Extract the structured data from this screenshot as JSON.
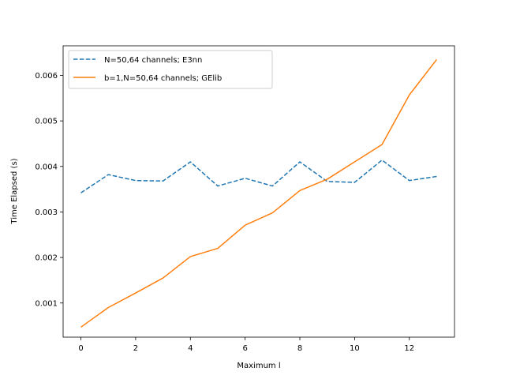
{
  "chart_data": {
    "type": "line",
    "title": "",
    "xlabel": "Maximum l",
    "ylabel": "Time Elapsed (s)",
    "xlim": [
      -0.65,
      13.65
    ],
    "ylim": [
      0.00025,
      0.00665
    ],
    "xticks": [
      0,
      2,
      4,
      6,
      8,
      10,
      12
    ],
    "xtick_labels": [
      "0",
      "2",
      "4",
      "6",
      "8",
      "10",
      "12"
    ],
    "yticks": [
      0.001,
      0.002,
      0.003,
      0.004,
      0.005,
      0.006
    ],
    "ytick_labels": [
      "0.001",
      "0.002",
      "0.003",
      "0.004",
      "0.005",
      "0.006"
    ],
    "grid": false,
    "legend_position": "upper left",
    "x": [
      0,
      1,
      2,
      3,
      4,
      5,
      6,
      7,
      8,
      9,
      10,
      11,
      12,
      13
    ],
    "series": [
      {
        "name": "N=50,64 channels; E3nn",
        "style": "dashed",
        "color": "#1f77b4",
        "values": [
          0.00342,
          0.00382,
          0.00369,
          0.00368,
          0.0041,
          0.00357,
          0.00374,
          0.00357,
          0.0041,
          0.00367,
          0.00365,
          0.00414,
          0.00369,
          0.00378
        ]
      },
      {
        "name": "b=1,N=50,64 channels; GElib",
        "style": "solid",
        "color": "#ff7f0e",
        "values": [
          0.00047,
          0.0009,
          0.00122,
          0.00155,
          0.00202,
          0.0022,
          0.00271,
          0.00298,
          0.00347,
          0.00372,
          0.0041,
          0.00448,
          0.00557,
          0.00635
        ]
      }
    ]
  }
}
